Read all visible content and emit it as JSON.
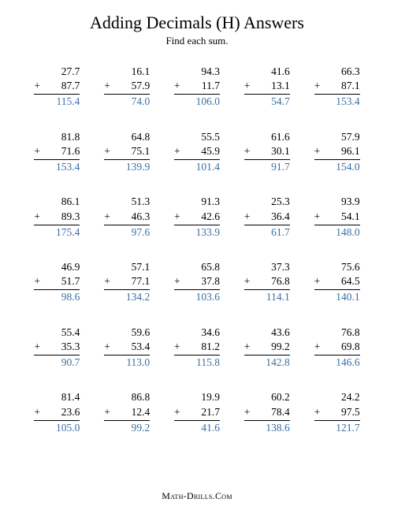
{
  "title": "Adding Decimals (H) Answers",
  "subtitle": "Find each sum.",
  "footer": "Math-Drills.Com",
  "colors": {
    "answer": "#3b6ea5",
    "text": "#000000",
    "background": "#ffffff"
  },
  "typography": {
    "title_fontsize": 22,
    "subtitle_fontsize": 13,
    "problem_fontsize": 13.5,
    "font_family": "Times New Roman"
  },
  "layout": {
    "rows": 6,
    "cols": 5
  },
  "problems": [
    [
      {
        "a": "27.7",
        "b": "87.7",
        "sum": "115.4"
      },
      {
        "a": "16.1",
        "b": "57.9",
        "sum": "74.0"
      },
      {
        "a": "94.3",
        "b": "11.7",
        "sum": "106.0"
      },
      {
        "a": "41.6",
        "b": "13.1",
        "sum": "54.7"
      },
      {
        "a": "66.3",
        "b": "87.1",
        "sum": "153.4"
      }
    ],
    [
      {
        "a": "81.8",
        "b": "71.6",
        "sum": "153.4"
      },
      {
        "a": "64.8",
        "b": "75.1",
        "sum": "139.9"
      },
      {
        "a": "55.5",
        "b": "45.9",
        "sum": "101.4"
      },
      {
        "a": "61.6",
        "b": "30.1",
        "sum": "91.7"
      },
      {
        "a": "57.9",
        "b": "96.1",
        "sum": "154.0"
      }
    ],
    [
      {
        "a": "86.1",
        "b": "89.3",
        "sum": "175.4"
      },
      {
        "a": "51.3",
        "b": "46.3",
        "sum": "97.6"
      },
      {
        "a": "91.3",
        "b": "42.6",
        "sum": "133.9"
      },
      {
        "a": "25.3",
        "b": "36.4",
        "sum": "61.7"
      },
      {
        "a": "93.9",
        "b": "54.1",
        "sum": "148.0"
      }
    ],
    [
      {
        "a": "46.9",
        "b": "51.7",
        "sum": "98.6"
      },
      {
        "a": "57.1",
        "b": "77.1",
        "sum": "134.2"
      },
      {
        "a": "65.8",
        "b": "37.8",
        "sum": "103.6"
      },
      {
        "a": "37.3",
        "b": "76.8",
        "sum": "114.1"
      },
      {
        "a": "75.6",
        "b": "64.5",
        "sum": "140.1"
      }
    ],
    [
      {
        "a": "55.4",
        "b": "35.3",
        "sum": "90.7"
      },
      {
        "a": "59.6",
        "b": "53.4",
        "sum": "113.0"
      },
      {
        "a": "34.6",
        "b": "81.2",
        "sum": "115.8"
      },
      {
        "a": "43.6",
        "b": "99.2",
        "sum": "142.8"
      },
      {
        "a": "76.8",
        "b": "69.8",
        "sum": "146.6"
      }
    ],
    [
      {
        "a": "81.4",
        "b": "23.6",
        "sum": "105.0"
      },
      {
        "a": "86.8",
        "b": "12.4",
        "sum": "99.2"
      },
      {
        "a": "19.9",
        "b": "21.7",
        "sum": "41.6"
      },
      {
        "a": "60.2",
        "b": "78.4",
        "sum": "138.6"
      },
      {
        "a": "24.2",
        "b": "97.5",
        "sum": "121.7"
      }
    ]
  ]
}
